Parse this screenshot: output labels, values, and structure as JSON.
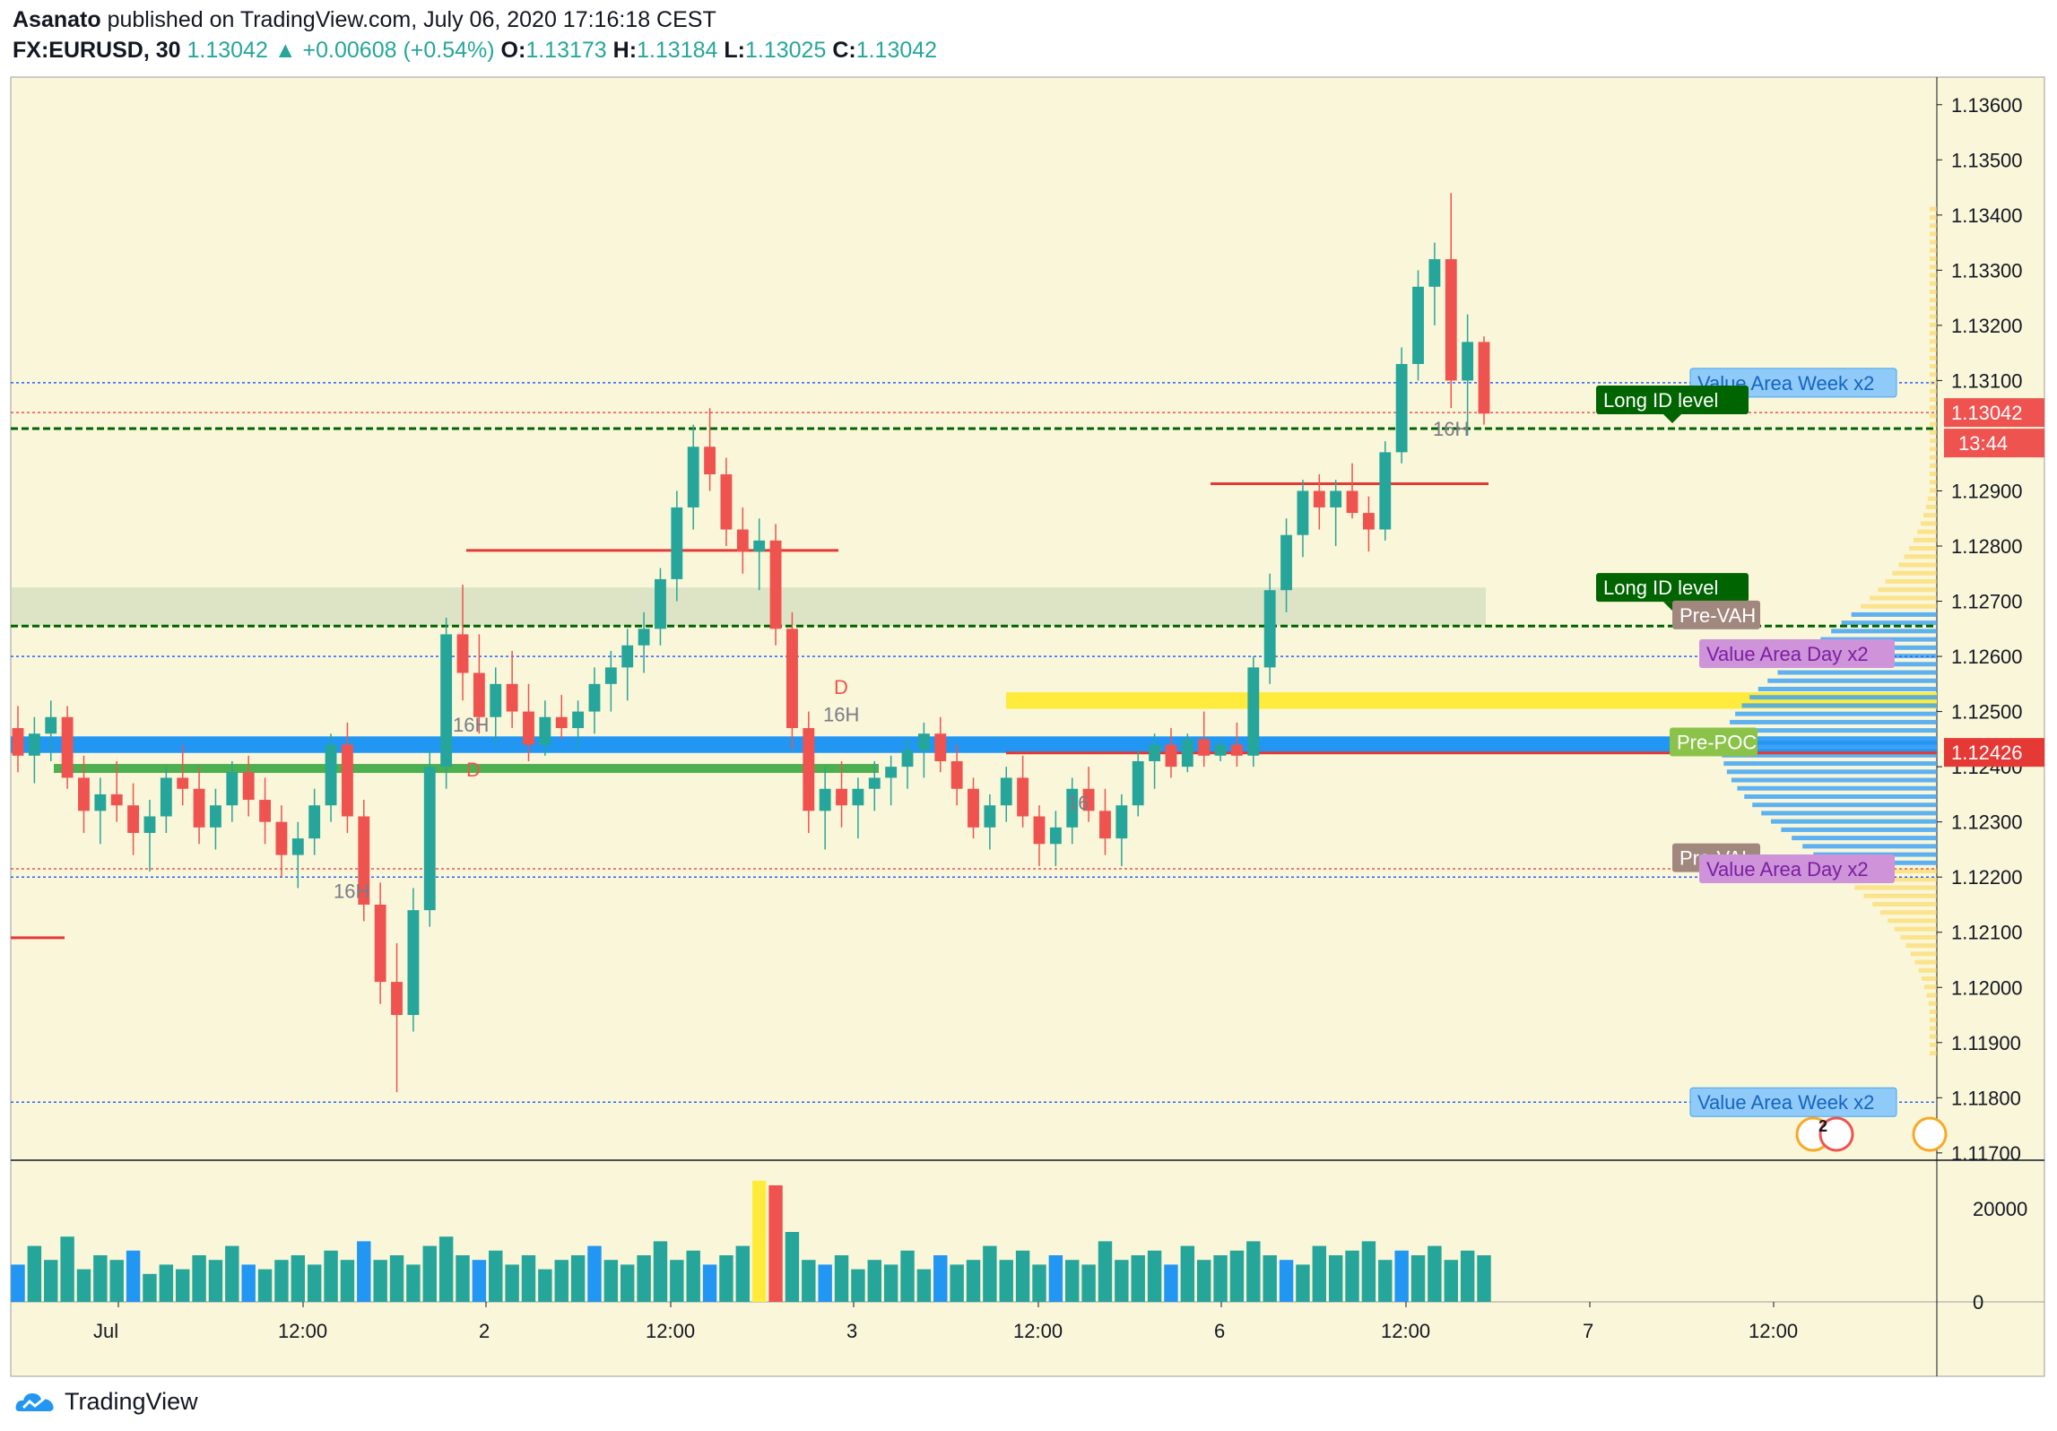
{
  "header": {
    "author": "Asanato",
    "published_text": "published on TradingView.com, July 06, 2020 17:16:18 CEST",
    "symbol": "FX:EURUSD, 30",
    "last": "1.13042",
    "change": "+0.00608 (+0.54%)",
    "o_label": "O:",
    "o_value": "1.13173",
    "h_label": "H:",
    "h_value": "1.13184",
    "l_label": "L:",
    "l_value": "1.13025",
    "c_label": "C:",
    "c_value": "1.13042"
  },
  "footer": {
    "brand": "TradingView"
  },
  "colors": {
    "background": "#faf6d9",
    "up": "#26a69a",
    "down": "#ef5350",
    "magenta": "#e040a0",
    "price_badge": "#ef5350",
    "green_label": "#006400",
    "poc_blue": "#2196f3",
    "yellow_zone": "#ffeb3b",
    "green_level": "#4caf50"
  },
  "chart_data": {
    "type": "candlestick",
    "symbol": "FX:EURUSD",
    "timeframe": "30",
    "y_axis": {
      "ticks": [
        "1.13600",
        "1.13500",
        "1.13400",
        "1.13300",
        "1.13200",
        "1.13100",
        "1.12900",
        "1.12800",
        "1.12700",
        "1.12600",
        "1.12500",
        "1.12400",
        "1.12300",
        "1.12200",
        "1.12100",
        "1.12000",
        "1.11900",
        "1.11800",
        "1.11700"
      ],
      "range": [
        1.1169,
        1.1365
      ]
    },
    "x_axis": {
      "ticks": [
        "Jul",
        "12:00",
        "2",
        "12:00",
        "3",
        "12:00",
        "6",
        "12:00",
        "7",
        "12:00"
      ]
    },
    "last_price_badge": "1.13042",
    "countdown_badge": "13:44",
    "poc_badge": "1.12426",
    "volume_axis": {
      "ticks": [
        "20000",
        "0"
      ],
      "range": [
        0,
        30000
      ]
    },
    "labels": [
      {
        "text": "Value Area Week x2",
        "price": 1.13096,
        "style": "blue"
      },
      {
        "text": "Long ID level",
        "price": 1.13065,
        "style": "green"
      },
      {
        "text": "16H",
        "price": 1.13013,
        "style": "gray"
      },
      {
        "text": "Long ID level",
        "price": 1.12725,
        "style": "green"
      },
      {
        "text": "Pre-VAH",
        "price": 1.12675,
        "style": "brown"
      },
      {
        "text": "Value Area Day x2",
        "price": 1.12605,
        "style": "purple"
      },
      {
        "text": "D",
        "price": 1.12545,
        "style": "red"
      },
      {
        "text": "16H",
        "price": 1.12495,
        "style": "gray"
      },
      {
        "text": "Pre-POC",
        "price": 1.12445,
        "style": "green-light"
      },
      {
        "text": "16H",
        "price": 1.12477,
        "style": "gray"
      },
      {
        "text": "D",
        "price": 1.12395,
        "style": "red"
      },
      {
        "text": "16",
        "price": 1.12335,
        "style": "gray"
      },
      {
        "text": "Pre-VAL",
        "price": 1.12235,
        "style": "brown"
      },
      {
        "text": "Value Area Day x2",
        "price": 1.12215,
        "style": "purple"
      },
      {
        "text": "16H",
        "price": 1.12175,
        "style": "gray"
      },
      {
        "text": "Value Area Week x2",
        "price": 1.11792,
        "style": "blue"
      }
    ],
    "events_badge": "2",
    "candles": [
      [
        1.1247,
        1.1251,
        1.1239,
        1.1242
      ],
      [
        1.1242,
        1.1249,
        1.1237,
        1.1246
      ],
      [
        1.1246,
        1.1252,
        1.1241,
        1.1249
      ],
      [
        1.1249,
        1.1251,
        1.1236,
        1.1238
      ],
      [
        1.1238,
        1.1242,
        1.1228,
        1.1232
      ],
      [
        1.1232,
        1.1238,
        1.1226,
        1.1235
      ],
      [
        1.1235,
        1.1241,
        1.123,
        1.1233
      ],
      [
        1.1233,
        1.1237,
        1.1224,
        1.1228
      ],
      [
        1.1228,
        1.1234,
        1.1221,
        1.1231
      ],
      [
        1.1231,
        1.124,
        1.1228,
        1.1238
      ],
      [
        1.1238,
        1.1244,
        1.1233,
        1.1236
      ],
      [
        1.1236,
        1.124,
        1.1226,
        1.1229
      ],
      [
        1.1229,
        1.1236,
        1.1225,
        1.1233
      ],
      [
        1.1233,
        1.1241,
        1.123,
        1.1239
      ],
      [
        1.1239,
        1.1242,
        1.1231,
        1.1234
      ],
      [
        1.1234,
        1.1238,
        1.1226,
        1.123
      ],
      [
        1.123,
        1.1233,
        1.122,
        1.1224
      ],
      [
        1.1224,
        1.123,
        1.1218,
        1.1227
      ],
      [
        1.1227,
        1.1236,
        1.1224,
        1.1233
      ],
      [
        1.1233,
        1.1246,
        1.123,
        1.1244
      ],
      [
        1.1244,
        1.1248,
        1.1228,
        1.1231
      ],
      [
        1.1231,
        1.1234,
        1.1212,
        1.1215
      ],
      [
        1.1215,
        1.1219,
        1.1197,
        1.1201
      ],
      [
        1.1201,
        1.1208,
        1.1181,
        1.1195
      ],
      [
        1.1195,
        1.1218,
        1.1192,
        1.1214
      ],
      [
        1.1214,
        1.1243,
        1.1211,
        1.124
      ],
      [
        1.124,
        1.1267,
        1.1236,
        1.1264
      ],
      [
        1.1264,
        1.1273,
        1.1252,
        1.1257
      ],
      [
        1.1257,
        1.1264,
        1.1246,
        1.1249
      ],
      [
        1.1249,
        1.1258,
        1.1244,
        1.1255
      ],
      [
        1.1255,
        1.1261,
        1.1247,
        1.125
      ],
      [
        1.125,
        1.1255,
        1.1241,
        1.1244
      ],
      [
        1.1244,
        1.1252,
        1.1242,
        1.1249
      ],
      [
        1.1249,
        1.1253,
        1.1245,
        1.1247
      ],
      [
        1.1247,
        1.1252,
        1.1243,
        1.125
      ],
      [
        1.125,
        1.1258,
        1.1246,
        1.1255
      ],
      [
        1.1255,
        1.1261,
        1.125,
        1.1258
      ],
      [
        1.1258,
        1.1265,
        1.1252,
        1.1262
      ],
      [
        1.1262,
        1.1268,
        1.1257,
        1.1265
      ],
      [
        1.1265,
        1.1276,
        1.1262,
        1.1274
      ],
      [
        1.1274,
        1.129,
        1.127,
        1.1287
      ],
      [
        1.1287,
        1.1302,
        1.1283,
        1.1298
      ],
      [
        1.1298,
        1.1305,
        1.129,
        1.1293
      ],
      [
        1.1293,
        1.1296,
        1.128,
        1.1283
      ],
      [
        1.1283,
        1.1287,
        1.1275,
        1.1279
      ],
      [
        1.1279,
        1.1285,
        1.1272,
        1.1281
      ],
      [
        1.1281,
        1.1284,
        1.1262,
        1.1265
      ],
      [
        1.1265,
        1.1268,
        1.1243,
        1.1247
      ],
      [
        1.1247,
        1.125,
        1.1228,
        1.1232
      ],
      [
        1.1232,
        1.124,
        1.1225,
        1.1236
      ],
      [
        1.1236,
        1.1241,
        1.1229,
        1.1233
      ],
      [
        1.1233,
        1.1238,
        1.1227,
        1.1236
      ],
      [
        1.1236,
        1.1241,
        1.1232,
        1.1238
      ],
      [
        1.1238,
        1.1242,
        1.1233,
        1.124
      ],
      [
        1.124,
        1.1245,
        1.1236,
        1.1243
      ],
      [
        1.1243,
        1.1248,
        1.1238,
        1.1246
      ],
      [
        1.1246,
        1.1249,
        1.1239,
        1.1241
      ],
      [
        1.1241,
        1.1244,
        1.1233,
        1.1236
      ],
      [
        1.1236,
        1.1238,
        1.1227,
        1.1229
      ],
      [
        1.1229,
        1.1235,
        1.1225,
        1.1233
      ],
      [
        1.1233,
        1.124,
        1.123,
        1.1238
      ],
      [
        1.1238,
        1.1242,
        1.1229,
        1.1231
      ],
      [
        1.1231,
        1.1233,
        1.1222,
        1.1226
      ],
      [
        1.1226,
        1.1232,
        1.1222,
        1.1229
      ],
      [
        1.1229,
        1.1238,
        1.1226,
        1.1236
      ],
      [
        1.1236,
        1.124,
        1.123,
        1.1232
      ],
      [
        1.1232,
        1.1236,
        1.1224,
        1.1227
      ],
      [
        1.1227,
        1.1235,
        1.1222,
        1.1233
      ],
      [
        1.1233,
        1.1243,
        1.1231,
        1.1241
      ],
      [
        1.1241,
        1.1246,
        1.1236,
        1.1244
      ],
      [
        1.1244,
        1.1247,
        1.1238,
        1.124
      ],
      [
        1.124,
        1.1246,
        1.1239,
        1.1245
      ],
      [
        1.1245,
        1.125,
        1.124,
        1.1242
      ],
      [
        1.1242,
        1.1245,
        1.1241,
        1.1244
      ],
      [
        1.1244,
        1.1248,
        1.124,
        1.1242
      ],
      [
        1.1242,
        1.126,
        1.124,
        1.1258
      ],
      [
        1.1258,
        1.1275,
        1.1255,
        1.1272
      ],
      [
        1.1272,
        1.1285,
        1.1268,
        1.1282
      ],
      [
        1.1282,
        1.1292,
        1.1278,
        1.129
      ],
      [
        1.129,
        1.1293,
        1.1283,
        1.1287
      ],
      [
        1.1287,
        1.1292,
        1.128,
        1.129
      ],
      [
        1.129,
        1.1295,
        1.1285,
        1.1286
      ],
      [
        1.1286,
        1.1289,
        1.1279,
        1.1283
      ],
      [
        1.1283,
        1.1299,
        1.1281,
        1.1297
      ],
      [
        1.1297,
        1.1316,
        1.1295,
        1.1313
      ],
      [
        1.1313,
        1.133,
        1.131,
        1.1327
      ],
      [
        1.1327,
        1.1335,
        1.132,
        1.1332
      ],
      [
        1.1332,
        1.1344,
        1.1305,
        1.131
      ],
      [
        1.131,
        1.1322,
        1.13,
        1.1317
      ],
      [
        1.1317,
        1.1318,
        1.1302,
        1.1304
      ]
    ],
    "volumes": [
      8,
      12,
      9,
      14,
      7,
      10,
      9,
      11,
      6,
      8,
      7,
      10,
      9,
      12,
      8,
      7,
      9,
      10,
      8,
      11,
      9,
      13,
      9,
      10,
      8,
      12,
      14,
      10,
      9,
      11,
      8,
      10,
      7,
      9,
      10,
      12,
      9,
      8,
      10,
      13,
      9,
      11,
      8,
      10,
      12,
      26,
      25,
      15,
      9,
      8,
      10,
      7,
      9,
      8,
      11,
      7,
      10,
      8,
      9,
      12,
      9,
      11,
      8,
      10,
      9,
      8,
      13,
      9,
      10,
      11,
      8,
      12,
      9,
      10,
      11,
      13,
      10,
      9,
      8,
      12,
      10,
      11,
      13,
      9,
      11,
      10,
      12,
      9,
      11,
      10
    ]
  }
}
